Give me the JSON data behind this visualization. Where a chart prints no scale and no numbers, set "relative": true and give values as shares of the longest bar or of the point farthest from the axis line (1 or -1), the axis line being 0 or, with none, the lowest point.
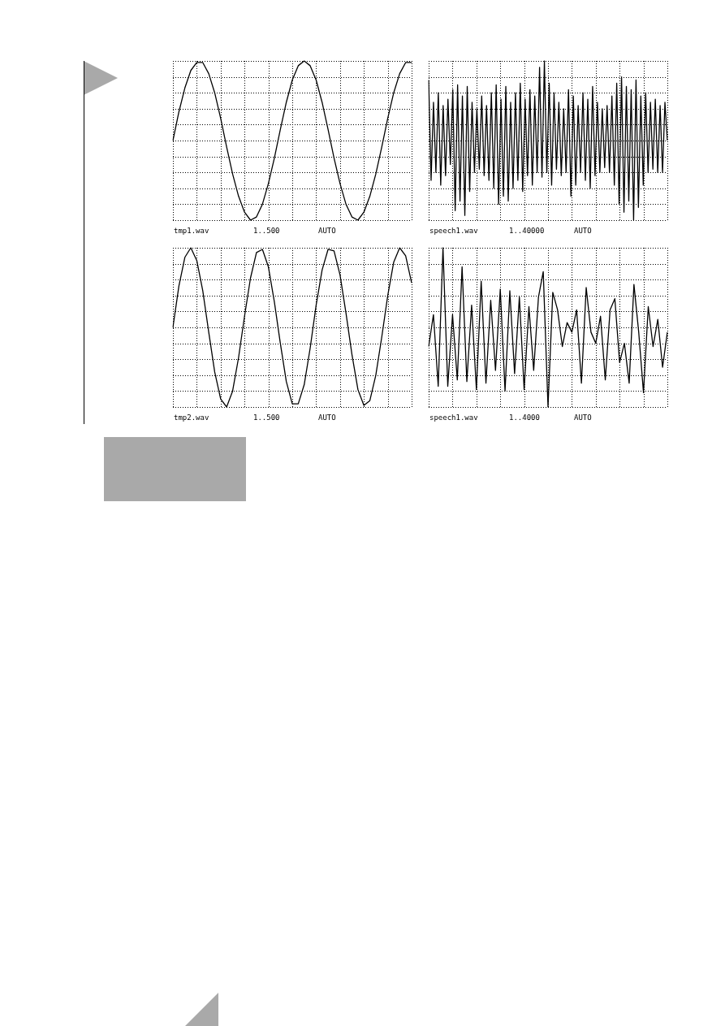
{
  "chart_data": [
    {
      "type": "line",
      "relative": true,
      "grid": true,
      "categories": [
        null,
        null,
        null,
        null,
        null,
        null,
        null,
        null,
        null,
        null,
        null,
        null,
        null,
        null,
        null,
        null,
        null,
        null,
        null,
        null,
        null,
        null,
        null,
        null,
        null,
        null,
        null,
        null,
        null,
        null,
        null,
        null,
        null,
        null,
        null,
        null,
        null,
        null,
        null,
        null,
        null
      ],
      "series": [
        {
          "color": "#000000",
          "values": [
            0.5,
            0.68,
            0.83,
            0.94,
            0.99,
            0.99,
            0.92,
            0.8,
            0.64,
            0.46,
            0.29,
            0.15,
            0.05,
            0,
            0.02,
            0.1,
            0.23,
            0.39,
            0.57,
            0.74,
            0.88,
            0.97,
            1,
            0.97,
            0.88,
            0.74,
            0.57,
            0.39,
            0.23,
            0.1,
            0.02,
            0,
            0.05,
            0.15,
            0.29,
            0.46,
            0.64,
            0.8,
            0.92,
            0.99,
            0.99
          ]
        }
      ],
      "annotations": [
        "tmp1.wav",
        "1..500",
        "AUTO"
      ]
    },
    {
      "type": "line",
      "relative": true,
      "grid": true,
      "categories": [
        null,
        null,
        null,
        null,
        null,
        null,
        null,
        null,
        null,
        null,
        null,
        null,
        null,
        null,
        null,
        null,
        null,
        null,
        null,
        null,
        null,
        null,
        null,
        null,
        null,
        null,
        null,
        null,
        null,
        null,
        null,
        null,
        null,
        null,
        null,
        null,
        null,
        null,
        null,
        null,
        null,
        null,
        null,
        null,
        null,
        null,
        null,
        null,
        null,
        null,
        null,
        null,
        null,
        null,
        null,
        null,
        null,
        null,
        null,
        null,
        null,
        null,
        null,
        null,
        null,
        null,
        null,
        null,
        null,
        null,
        null,
        null,
        null,
        null,
        null,
        null,
        null,
        null,
        null,
        null,
        null,
        null,
        null,
        null,
        null,
        null,
        null,
        null,
        null,
        null,
        null,
        null,
        null,
        null,
        null,
        null,
        null,
        null,
        null,
        null
      ],
      "series": [
        {
          "color": "#000000",
          "values": [
            0.88,
            0.25,
            0.74,
            0.3,
            0.8,
            0.22,
            0.72,
            0.28,
            0.76,
            0.35,
            0.82,
            0.06,
            0.85,
            0.12,
            0.78,
            0.03,
            0.84,
            0.18,
            0.74,
            0.3,
            0.7,
            0.32,
            0.78,
            0.28,
            0.72,
            0.25,
            0.8,
            0.2,
            0.85,
            0.1,
            0.76,
            0.15,
            0.84,
            0.12,
            0.74,
            0.2,
            0.8,
            0.25,
            0.86,
            0.18,
            0.76,
            0.28,
            0.82,
            0.22,
            0.78,
            0.3,
            0.96,
            0.27,
            1,
            0.3,
            0.86,
            0.22,
            0.8,
            0.32,
            0.74,
            0.28,
            0.7,
            0.3,
            0.82,
            0.15,
            0.78,
            0.22,
            0.72,
            0.3,
            0.8,
            0.25,
            0.76,
            0.2,
            0.84,
            0.28,
            0.74,
            0.3,
            0.7,
            0.33,
            0.72,
            0.3,
            0.78,
            0.22,
            0.86,
            0.1,
            0.9,
            0.05,
            0.84,
            0.12,
            0.82,
            0,
            0.88,
            0.08,
            0.78,
            0.22,
            0.8,
            0.3,
            0.74,
            0.32,
            0.76,
            0.3,
            0.72,
            0.3,
            0.74,
            0.5
          ]
        }
      ],
      "annotations": [
        "speech1.wav",
        "1..40000",
        "AUTO"
      ]
    },
    {
      "type": "line",
      "relative": true,
      "grid": true,
      "categories": [
        null,
        null,
        null,
        null,
        null,
        null,
        null,
        null,
        null,
        null,
        null,
        null,
        null,
        null,
        null,
        null,
        null,
        null,
        null,
        null,
        null,
        null,
        null,
        null,
        null,
        null,
        null,
        null,
        null,
        null,
        null,
        null,
        null,
        null,
        null,
        null,
        null,
        null,
        null,
        null,
        null
      ],
      "series": [
        {
          "color": "#000000",
          "values": [
            0.5,
            0.76,
            0.94,
            1,
            0.92,
            0.73,
            0.47,
            0.22,
            0.05,
            0,
            0.1,
            0.31,
            0.57,
            0.81,
            0.97,
            0.99,
            0.88,
            0.66,
            0.4,
            0.16,
            0.02,
            0.02,
            0.14,
            0.37,
            0.64,
            0.86,
            0.99,
            0.98,
            0.83,
            0.59,
            0.33,
            0.11,
            0.01,
            0.04,
            0.2,
            0.44,
            0.7,
            0.91,
            1,
            0.95,
            0.78
          ]
        }
      ],
      "annotations": [
        "tmp2.wav",
        "1..500",
        "AUTO"
      ]
    },
    {
      "type": "line",
      "relative": true,
      "grid": true,
      "categories": [
        null,
        null,
        null,
        null,
        null,
        null,
        null,
        null,
        null,
        null,
        null,
        null,
        null,
        null,
        null,
        null,
        null,
        null,
        null,
        null,
        null,
        null,
        null,
        null,
        null,
        null,
        null,
        null,
        null,
        null,
        null,
        null,
        null,
        null,
        null,
        null,
        null,
        null,
        null,
        null,
        null,
        null,
        null,
        null,
        null,
        null,
        null,
        null,
        null,
        null,
        null
      ],
      "series": [
        {
          "color": "#000000",
          "values": [
            0.38,
            0.58,
            0.13,
            1,
            0.13,
            0.58,
            0.17,
            0.88,
            0.16,
            0.64,
            0.11,
            0.79,
            0.15,
            0.67,
            0.23,
            0.74,
            0.1,
            0.73,
            0.21,
            0.69,
            0.11,
            0.63,
            0.23,
            0.69,
            0.85,
            0,
            0.72,
            0.61,
            0.38,
            0.53,
            0.47,
            0.61,
            0.15,
            0.75,
            0.47,
            0.4,
            0.57,
            0.17,
            0.61,
            0.68,
            0.28,
            0.4,
            0.15,
            0.77,
            0.47,
            0.09,
            0.63,
            0.38,
            0.55,
            0.25,
            0.47
          ]
        }
      ],
      "annotations": [
        "speech1.wav",
        "1..4000",
        "AUTO"
      ]
    }
  ]
}
